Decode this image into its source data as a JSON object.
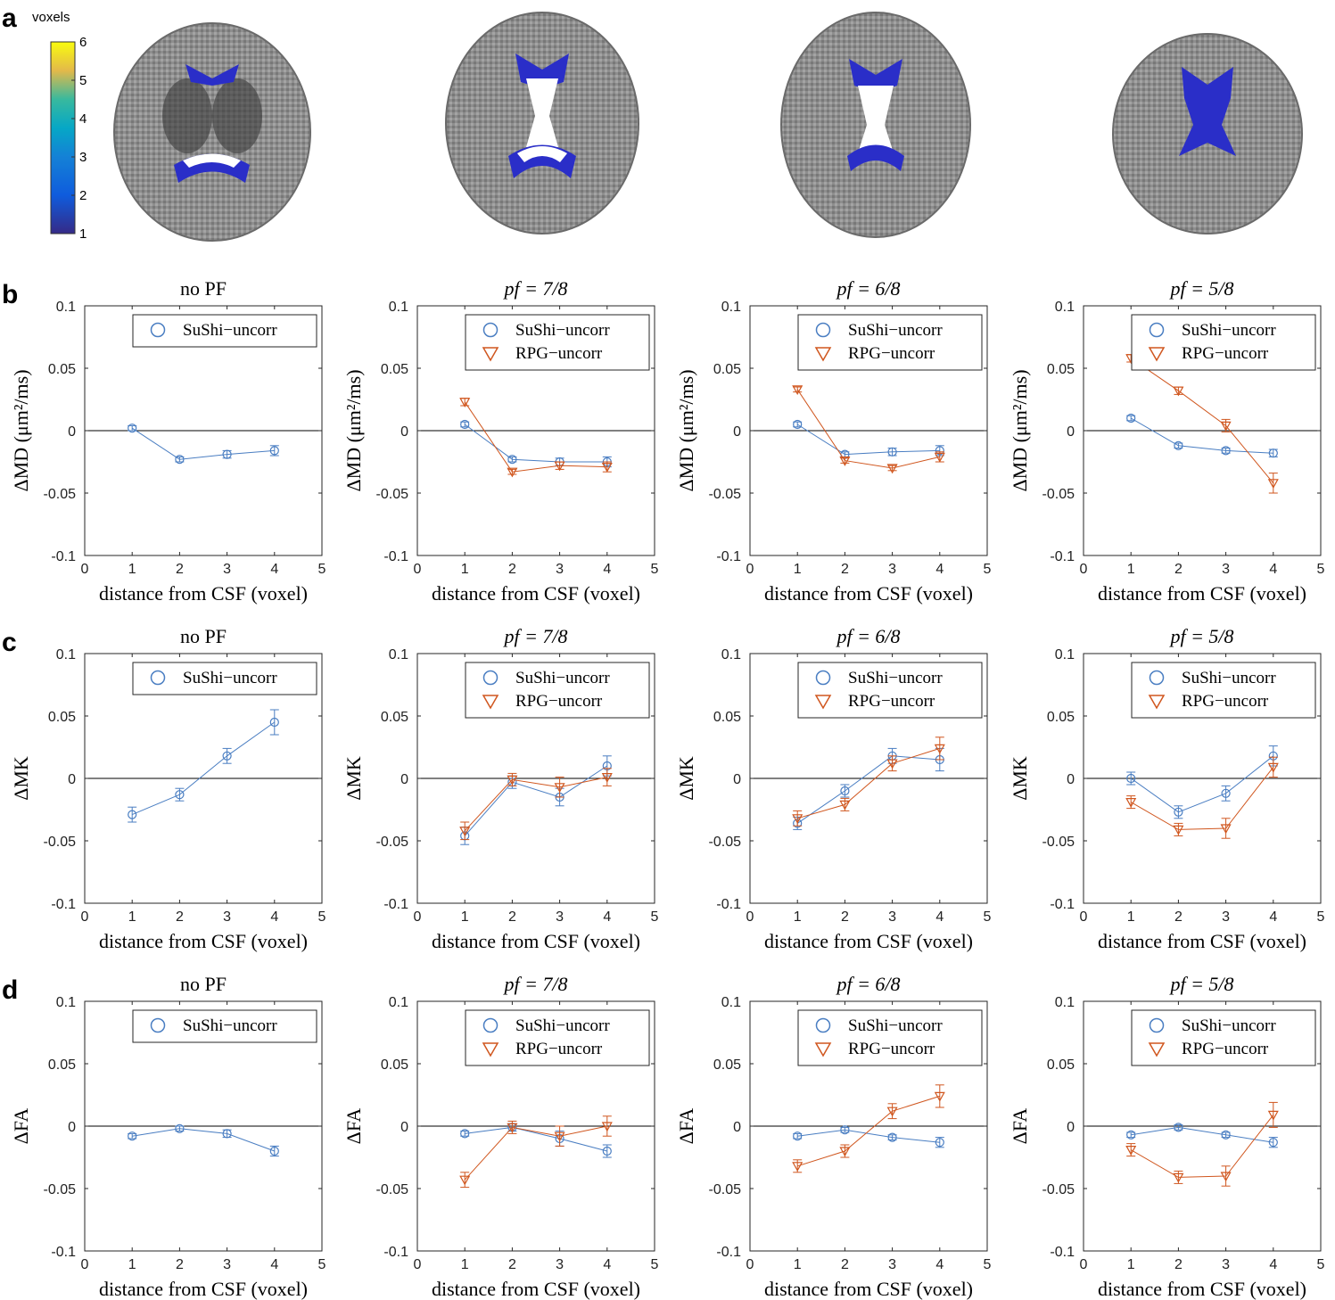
{
  "panel_labels": {
    "a": "a",
    "b": "b",
    "c": "c",
    "d": "d"
  },
  "colorbar": {
    "label": "voxels",
    "ticks": [
      "1",
      "2",
      "3",
      "4",
      "5",
      "6"
    ]
  },
  "brain_images": [
    {
      "name": "brain-slice-1",
      "region": "lower-slice"
    },
    {
      "name": "brain-slice-2",
      "region": "mid-lower-slice"
    },
    {
      "name": "brain-slice-3",
      "region": "mid-upper-slice"
    },
    {
      "name": "brain-slice-4",
      "region": "upper-slice"
    }
  ],
  "colors": {
    "sushi": "#4a7ec2",
    "rpg": "#d0561e"
  },
  "x_tick_labels": [
    "0",
    "1",
    "2",
    "3",
    "4",
    "5"
  ],
  "y_tick_labels": [
    "-0.1",
    "-0.05",
    "0",
    "0.05",
    "0.1"
  ],
  "xlabel": "distance from CSF (voxel)",
  "row_ylabels": {
    "b": "ΔMD (μm²/ms)",
    "c": "ΔMK",
    "d": "ΔFA"
  },
  "col_titles": [
    "no PF",
    "pf = 7/8",
    "pf = 6/8",
    "pf = 5/8"
  ],
  "legend": {
    "sushi": "SuShi−uncorr",
    "rpg": "RPG−uncorr"
  },
  "chart_data": [
    {
      "type": "line",
      "row": "b",
      "title": "no PF",
      "xlabel": "distance from CSF (voxel)",
      "ylabel": "ΔMD (μm²/ms)",
      "xlim": [
        0,
        5
      ],
      "ylim": [
        -0.1,
        0.1
      ],
      "x": [
        1,
        2,
        3,
        4
      ],
      "series": [
        {
          "name": "SuShi−uncorr",
          "values": [
            0.002,
            -0.023,
            -0.019,
            -0.016
          ],
          "err": [
            0.002,
            0.002,
            0.003,
            0.004
          ]
        }
      ]
    },
    {
      "type": "line",
      "row": "b",
      "title": "pf = 7/8",
      "xlabel": "distance from CSF (voxel)",
      "ylabel": "ΔMD (μm²/ms)",
      "xlim": [
        0,
        5
      ],
      "ylim": [
        -0.1,
        0.1
      ],
      "x": [
        1,
        2,
        3,
        4
      ],
      "series": [
        {
          "name": "SuShi−uncorr",
          "values": [
            0.005,
            -0.023,
            -0.025,
            -0.025
          ],
          "err": [
            0.002,
            0.002,
            0.003,
            0.004
          ]
        },
        {
          "name": "RPG−uncorr",
          "values": [
            0.023,
            -0.033,
            -0.028,
            -0.029
          ],
          "err": [
            0.003,
            0.002,
            0.003,
            0.004
          ]
        }
      ]
    },
    {
      "type": "line",
      "row": "b",
      "title": "pf = 6/8",
      "xlabel": "distance from CSF (voxel)",
      "ylabel": "ΔMD (μm²/ms)",
      "xlim": [
        0,
        5
      ],
      "ylim": [
        -0.1,
        0.1
      ],
      "x": [
        1,
        2,
        3,
        4
      ],
      "series": [
        {
          "name": "SuShi−uncorr",
          "values": [
            0.005,
            -0.019,
            -0.017,
            -0.016
          ],
          "err": [
            0.002,
            0.002,
            0.003,
            0.004
          ]
        },
        {
          "name": "RPG−uncorr",
          "values": [
            0.033,
            -0.024,
            -0.03,
            -0.021
          ],
          "err": [
            0.002,
            0.002,
            0.002,
            0.004
          ]
        }
      ]
    },
    {
      "type": "line",
      "row": "b",
      "title": "pf = 5/8",
      "xlabel": "distance from CSF (voxel)",
      "ylabel": "ΔMD (μm²/ms)",
      "xlim": [
        0,
        5
      ],
      "ylim": [
        -0.1,
        0.1
      ],
      "x": [
        1,
        2,
        3,
        4
      ],
      "series": [
        {
          "name": "SuShi−uncorr",
          "values": [
            0.01,
            -0.012,
            -0.016,
            -0.018
          ],
          "err": [
            0.002,
            0.002,
            0.002,
            0.003
          ]
        },
        {
          "name": "RPG−uncorr",
          "values": [
            0.058,
            0.032,
            0.004,
            -0.042
          ],
          "err": [
            0.003,
            0.003,
            0.005,
            0.008
          ]
        }
      ]
    },
    {
      "type": "line",
      "row": "c",
      "title": "no PF",
      "xlabel": "distance from CSF (voxel)",
      "ylabel": "ΔMK",
      "xlim": [
        0,
        5
      ],
      "ylim": [
        -0.1,
        0.1
      ],
      "x": [
        1,
        2,
        3,
        4
      ],
      "series": [
        {
          "name": "SuShi−uncorr",
          "values": [
            -0.029,
            -0.013,
            0.018,
            0.045
          ],
          "err": [
            0.006,
            0.005,
            0.006,
            0.01
          ]
        }
      ]
    },
    {
      "type": "line",
      "row": "c",
      "title": "pf = 7/8",
      "xlabel": "distance from CSF (voxel)",
      "ylabel": "ΔMK",
      "xlim": [
        0,
        5
      ],
      "ylim": [
        -0.1,
        0.1
      ],
      "x": [
        1,
        2,
        3,
        4
      ],
      "series": [
        {
          "name": "SuShi−uncorr",
          "values": [
            -0.046,
            -0.003,
            -0.015,
            0.01
          ],
          "err": [
            0.007,
            0.005,
            0.007,
            0.008
          ]
        },
        {
          "name": "RPG−uncorr",
          "values": [
            -0.042,
            -0.001,
            -0.007,
            0.001
          ],
          "err": [
            0.007,
            0.005,
            0.008,
            0.007
          ]
        }
      ]
    },
    {
      "type": "line",
      "row": "c",
      "title": "pf = 6/8",
      "xlabel": "distance from CSF (voxel)",
      "ylabel": "ΔMK",
      "xlim": [
        0,
        5
      ],
      "ylim": [
        -0.1,
        0.1
      ],
      "x": [
        1,
        2,
        3,
        4
      ],
      "series": [
        {
          "name": "SuShi−uncorr",
          "values": [
            -0.036,
            -0.01,
            0.018,
            0.015
          ],
          "err": [
            0.005,
            0.005,
            0.006,
            0.009
          ]
        },
        {
          "name": "RPG−uncorr",
          "values": [
            -0.032,
            -0.021,
            0.012,
            0.024
          ],
          "err": [
            0.006,
            0.005,
            0.006,
            0.009
          ]
        }
      ]
    },
    {
      "type": "line",
      "row": "c",
      "title": "pf = 5/8",
      "xlabel": "distance from CSF (voxel)",
      "ylabel": "ΔMK",
      "xlim": [
        0,
        5
      ],
      "ylim": [
        -0.1,
        0.1
      ],
      "x": [
        1,
        2,
        3,
        4
      ],
      "series": [
        {
          "name": "SuShi−uncorr",
          "values": [
            0.0,
            -0.027,
            -0.012,
            0.018
          ],
          "err": [
            0.005,
            0.005,
            0.006,
            0.008
          ]
        },
        {
          "name": "RPG−uncorr",
          "values": [
            -0.019,
            -0.041,
            -0.04,
            0.009
          ],
          "err": [
            0.005,
            0.005,
            0.008,
            0.008
          ]
        }
      ]
    },
    {
      "type": "line",
      "row": "d",
      "title": "no PF",
      "xlabel": "distance from CSF (voxel)",
      "ylabel": "ΔFA",
      "xlim": [
        0,
        5
      ],
      "ylim": [
        -0.1,
        0.1
      ],
      "x": [
        1,
        2,
        3,
        4
      ],
      "series": [
        {
          "name": "SuShi−uncorr",
          "values": [
            -0.008,
            -0.002,
            -0.006,
            -0.02
          ],
          "err": [
            0.002,
            0.002,
            0.003,
            0.004
          ]
        }
      ]
    },
    {
      "type": "line",
      "row": "d",
      "title": "pf = 7/8",
      "xlabel": "distance from CSF (voxel)",
      "ylabel": "ΔFA",
      "xlim": [
        0,
        5
      ],
      "ylim": [
        -0.1,
        0.1
      ],
      "x": [
        1,
        2,
        3,
        4
      ],
      "series": [
        {
          "name": "SuShi−uncorr",
          "values": [
            -0.006,
            -0.001,
            -0.01,
            -0.02
          ],
          "err": [
            0.002,
            0.003,
            0.006,
            0.005
          ]
        },
        {
          "name": "RPG−uncorr",
          "values": [
            -0.043,
            -0.001,
            -0.008,
            0.0
          ],
          "err": [
            0.006,
            0.005,
            0.008,
            0.008
          ]
        }
      ]
    },
    {
      "type": "line",
      "row": "d",
      "title": "pf = 6/8",
      "xlabel": "distance from CSF (voxel)",
      "ylabel": "ΔFA",
      "xlim": [
        0,
        5
      ],
      "ylim": [
        -0.1,
        0.1
      ],
      "x": [
        1,
        2,
        3,
        4
      ],
      "series": [
        {
          "name": "SuShi−uncorr",
          "values": [
            -0.008,
            -0.003,
            -0.009,
            -0.013
          ],
          "err": [
            0.002,
            0.002,
            0.002,
            0.004
          ]
        },
        {
          "name": "RPG−uncorr",
          "values": [
            -0.032,
            -0.02,
            0.012,
            0.024
          ],
          "err": [
            0.005,
            0.005,
            0.006,
            0.009
          ]
        }
      ]
    },
    {
      "type": "line",
      "row": "d",
      "title": "pf = 5/8",
      "xlabel": "distance from CSF (voxel)",
      "ylabel": "ΔFA",
      "xlim": [
        0,
        5
      ],
      "ylim": [
        -0.1,
        0.1
      ],
      "x": [
        1,
        2,
        3,
        4
      ],
      "series": [
        {
          "name": "SuShi−uncorr",
          "values": [
            -0.007,
            -0.001,
            -0.007,
            -0.013
          ],
          "err": [
            0.002,
            0.002,
            0.002,
            0.004
          ]
        },
        {
          "name": "RPG−uncorr",
          "values": [
            -0.019,
            -0.041,
            -0.04,
            0.009
          ],
          "err": [
            0.005,
            0.005,
            0.008,
            0.01
          ]
        }
      ]
    }
  ]
}
